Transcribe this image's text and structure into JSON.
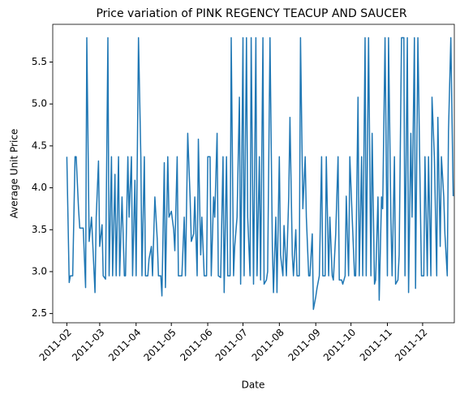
{
  "chart_data": {
    "type": "line",
    "title": "Price variation of PINK REGENCY TEACUP AND SAUCER",
    "xlabel": "Date",
    "ylabel": "Average Unit Price",
    "x": [
      32,
      34,
      35,
      37,
      39,
      40,
      42,
      43,
      45,
      46,
      48,
      49,
      51,
      53,
      54,
      56,
      57,
      59,
      60,
      62,
      63,
      65,
      67,
      68,
      70,
      71,
      73,
      74,
      76,
      77,
      79,
      81,
      82,
      84,
      85,
      87,
      88,
      90,
      91,
      93,
      95,
      96,
      98,
      99,
      101,
      102,
      104,
      105,
      107,
      109,
      110,
      112,
      113,
      115,
      116,
      118,
      119,
      121,
      123,
      124,
      126,
      127,
      129,
      130,
      132,
      133,
      135,
      137,
      138,
      140,
      141,
      143,
      144,
      146,
      147,
      149,
      151,
      152,
      154,
      155,
      157,
      158,
      160,
      161,
      163,
      165,
      166,
      168,
      169,
      171,
      172,
      174,
      175,
      177,
      179,
      180,
      182,
      183,
      185,
      186,
      188,
      189,
      191,
      193,
      194,
      196,
      197,
      199,
      200,
      202,
      203,
      205,
      207,
      208,
      210,
      211,
      213,
      214,
      216,
      217,
      219,
      221,
      222,
      224,
      225,
      227,
      228,
      230,
      231,
      233,
      235,
      236,
      238,
      239,
      241,
      242,
      244,
      245,
      247,
      249,
      250,
      252,
      253,
      255,
      256,
      258,
      259,
      261,
      263,
      264,
      266,
      267,
      269,
      270,
      272,
      273,
      275,
      277,
      278,
      280,
      281,
      283,
      284,
      286,
      287,
      289,
      291,
      292,
      294,
      295,
      297,
      298,
      300,
      301,
      303,
      305,
      306,
      308,
      309,
      311,
      312,
      314,
      315,
      317,
      319,
      320,
      322,
      323,
      325,
      326,
      328,
      329,
      331,
      333,
      334,
      336,
      337,
      339,
      340,
      342,
      343,
      345,
      347,
      348,
      350,
      351,
      353,
      354,
      356,
      357,
      359,
      361
    ],
    "series": [
      {
        "color": "#1f77b4",
        "values": [
          4.37,
          2.87,
          2.95,
          2.95,
          4.37,
          4.37,
          3.75,
          3.52,
          3.52,
          3.52,
          2.81,
          5.79,
          3.36,
          3.65,
          3.36,
          2.75,
          3.65,
          4.32,
          3.3,
          3.56,
          2.95,
          2.91,
          5.79,
          2.95,
          4.37,
          2.95,
          4.16,
          2.95,
          4.37,
          2.95,
          3.89,
          2.95,
          2.95,
          4.37,
          3.65,
          4.37,
          2.95,
          4.09,
          2.95,
          5.79,
          4.37,
          2.95,
          4.37,
          2.95,
          2.95,
          3.15,
          3.3,
          2.95,
          3.89,
          3.39,
          2.95,
          2.95,
          2.71,
          4.3,
          2.81,
          4.37,
          3.65,
          3.72,
          3.5,
          3.25,
          4.37,
          2.95,
          2.95,
          2.95,
          3.65,
          2.95,
          4.65,
          3.89,
          3.36,
          3.45,
          3.89,
          2.95,
          4.58,
          3.2,
          3.65,
          2.95,
          2.95,
          4.37,
          4.37,
          2.95,
          3.89,
          3.65,
          4.65,
          2.95,
          2.93,
          4.37,
          2.75,
          4.37,
          2.95,
          2.95,
          5.79,
          2.95,
          3.3,
          3.65,
          5.08,
          2.85,
          5.79,
          2.95,
          5.79,
          3.65,
          2.95,
          5.79,
          2.85,
          5.79,
          2.95,
          4.37,
          2.9,
          5.79,
          2.85,
          2.9,
          3.0,
          5.79,
          3.3,
          2.75,
          3.65,
          2.75,
          4.37,
          3.2,
          2.95,
          3.55,
          2.95,
          3.89,
          4.84,
          3.2,
          2.95,
          3.5,
          2.95,
          2.95,
          5.79,
          3.75,
          4.37,
          3.65,
          2.95,
          2.95,
          3.45,
          2.55,
          2.7,
          2.8,
          2.95,
          4.37,
          2.95,
          2.95,
          4.37,
          2.95,
          3.65,
          2.95,
          2.9,
          3.45,
          4.37,
          2.9,
          2.9,
          2.85,
          2.95,
          3.9,
          2.95,
          4.37,
          3.65,
          2.95,
          2.95,
          5.08,
          2.95,
          4.37,
          2.95,
          5.79,
          2.95,
          5.79,
          2.95,
          4.65,
          2.85,
          2.9,
          3.89,
          2.66,
          3.89,
          3.75,
          5.79,
          2.95,
          5.79,
          3.65,
          2.95,
          4.37,
          2.85,
          2.9,
          3.2,
          5.79,
          5.79,
          2.95,
          5.79,
          2.75,
          4.65,
          3.65,
          5.79,
          2.8,
          5.79,
          3.89,
          2.95,
          2.95,
          4.37,
          2.95,
          4.37,
          2.95,
          5.08,
          4.37,
          2.95,
          4.84,
          3.3,
          4.37,
          3.89,
          3.45,
          2.95,
          4.67,
          5.79,
          3.9
        ]
      }
    ],
    "xlim": [
      20,
      362
    ],
    "xticks": [
      {
        "value": 32,
        "label": "2011-02"
      },
      {
        "value": 60,
        "label": "2011-03"
      },
      {
        "value": 91,
        "label": "2011-04"
      },
      {
        "value": 121,
        "label": "2011-05"
      },
      {
        "value": 152,
        "label": "2011-06"
      },
      {
        "value": 182,
        "label": "2011-07"
      },
      {
        "value": 213,
        "label": "2011-08"
      },
      {
        "value": 244,
        "label": "2011-09"
      },
      {
        "value": 274,
        "label": "2011-10"
      },
      {
        "value": 305,
        "label": "2011-11"
      },
      {
        "value": 335,
        "label": "2011-12"
      }
    ],
    "ylim": [
      2.39,
      5.95
    ],
    "yticks": [
      2.5,
      {
        "value": 3,
        "label": "3.0"
      },
      3.5,
      {
        "value": 4,
        "label": "4.0"
      },
      4.5,
      {
        "value": 5,
        "label": "5.0"
      },
      5.5
    ],
    "grid": false
  }
}
